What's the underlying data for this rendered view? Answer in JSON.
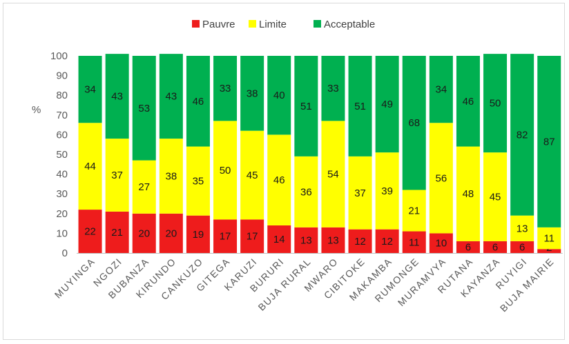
{
  "chart_data": {
    "type": "bar",
    "stacked": true,
    "ylabel": "%",
    "ylim": [
      0,
      100
    ],
    "yticks": [
      0,
      10,
      20,
      30,
      40,
      50,
      60,
      70,
      80,
      90,
      100
    ],
    "grid": false,
    "legend_position": "top-center",
    "categories": [
      "MUYINGA",
      "NGOZI",
      "BUBANZA",
      "KIRUNDO",
      "CANKUZO",
      "GITEGA",
      "KARUZI",
      "BURURI",
      "BUJA RURAL",
      "MWARO",
      "CIBITOKE",
      "MAKAMBA",
      "RUMONGE",
      "MURAMVYA",
      "RUTANA",
      "KAYANZA",
      "RUYIGI",
      "BUJA MAIRIE"
    ],
    "series": [
      {
        "name": "Pauvre",
        "color": "#ee1c1c",
        "values": [
          22,
          21,
          20,
          20,
          19,
          17,
          17,
          14,
          13,
          13,
          12,
          12,
          11,
          10,
          6,
          6,
          6,
          2
        ]
      },
      {
        "name": "Limite",
        "color": "#ffff00",
        "values": [
          44,
          37,
          27,
          38,
          35,
          50,
          45,
          46,
          36,
          54,
          37,
          39,
          21,
          56,
          48,
          45,
          13,
          11
        ]
      },
      {
        "name": "Acceptable",
        "color": "#00b050",
        "values": [
          34,
          43,
          53,
          43,
          46,
          33,
          38,
          40,
          51,
          33,
          51,
          49,
          68,
          34,
          46,
          50,
          82,
          87
        ]
      }
    ]
  }
}
